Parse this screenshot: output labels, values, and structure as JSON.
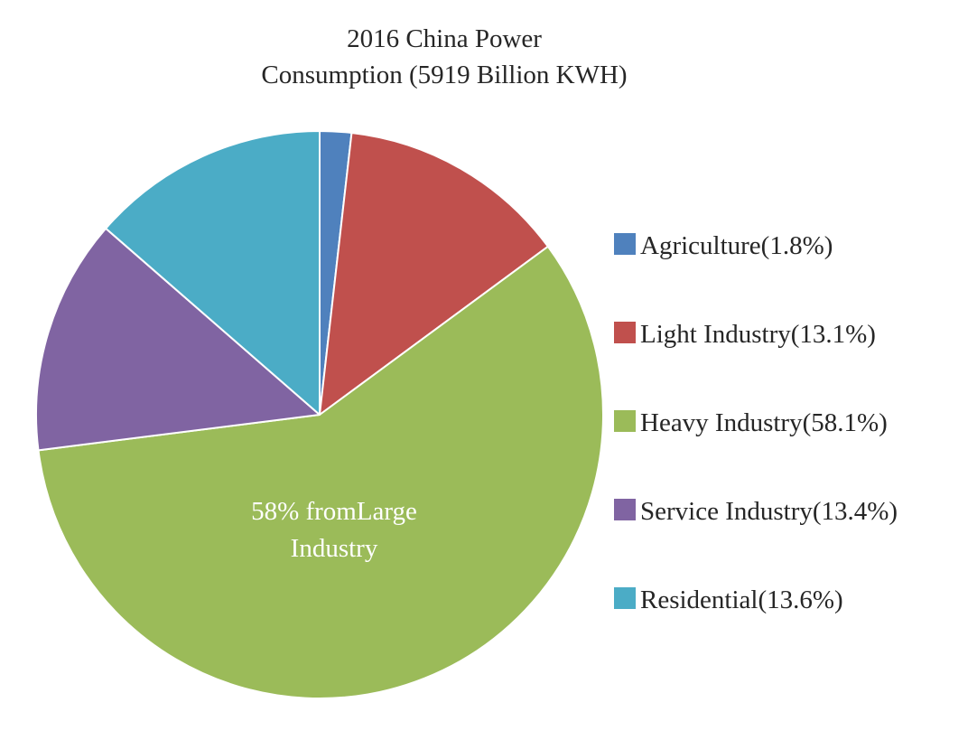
{
  "chart_data": {
    "type": "pie",
    "title_lines": [
      "2016 China Power",
      "Consumption (5919 Billion KWH)"
    ],
    "slices": [
      {
        "label": "Agriculture(1.8%)",
        "value": 1.8,
        "color": "#4f81bd"
      },
      {
        "label": "Light Industry(13.1%)",
        "value": 13.1,
        "color": "#c0504d"
      },
      {
        "label": "Heavy Industry(58.1%)",
        "value": 58.1,
        "color": "#9bbb59"
      },
      {
        "label": "Service Industry(13.4%)",
        "value": 13.4,
        "color": "#8064a2"
      },
      {
        "label": "Residential(13.6%)",
        "value": 13.6,
        "color": "#4bacc6"
      }
    ],
    "annotation_lines": [
      "58% fromLarge",
      "Industry"
    ],
    "legend_position": "right"
  }
}
